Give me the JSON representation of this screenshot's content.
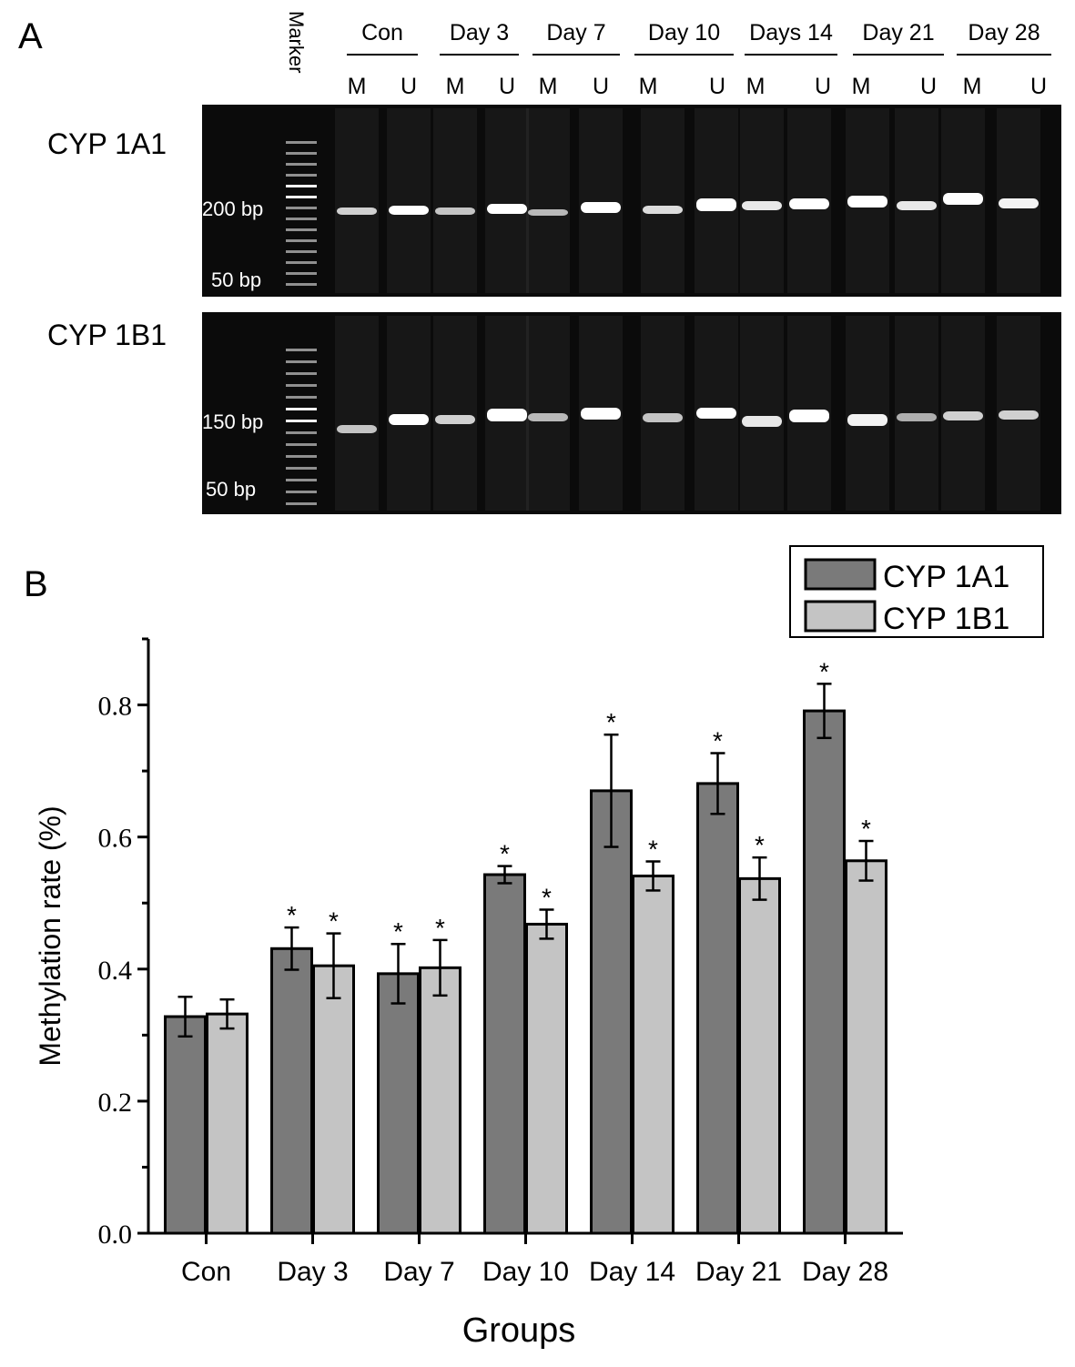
{
  "panel_a": {
    "letter": "A",
    "marker_label": "Marker",
    "groups": [
      "Con",
      "Day 3",
      "Day 7",
      "Day 10",
      "Days 14",
      "Day 21",
      "Day 28"
    ],
    "lane_labels": [
      "M",
      "U",
      "M",
      "U",
      "M",
      "U",
      "M",
      "U",
      "M",
      "U",
      "M",
      "U",
      "M",
      "U"
    ],
    "gels": [
      {
        "title": "CYP 1A1",
        "size_labels": [
          "200 bp",
          "50 bp"
        ]
      },
      {
        "title": "CYP 1B1",
        "size_labels": [
          "150 bp",
          "50 bp"
        ]
      }
    ]
  },
  "panel_b": {
    "letter": "B"
  },
  "colors": {
    "cyp1a1": "#7a7a7a",
    "cyp1b1": "#c4c4c4",
    "gel_bg": "#0b0b0b",
    "band": "#ffffff"
  },
  "chart_data": {
    "type": "bar",
    "xlabel": "Groups",
    "ylabel": "Methylation rate (%)",
    "ylim": [
      0,
      0.9
    ],
    "yticks": [
      "0.0",
      "0.2",
      "0.4",
      "0.6",
      "0.8"
    ],
    "categories": [
      "Con",
      "Day 3",
      "Day 7",
      "Day 10",
      "Day 14",
      "Day 21",
      "Day 28"
    ],
    "series": [
      {
        "name": "CYP 1A1",
        "values": [
          0.328,
          0.431,
          0.393,
          0.543,
          0.67,
          0.681,
          0.791
        ],
        "errors": [
          0.03,
          0.032,
          0.045,
          0.013,
          0.085,
          0.046,
          0.041
        ],
        "significant": [
          false,
          true,
          true,
          true,
          true,
          true,
          true
        ]
      },
      {
        "name": "CYP 1B1",
        "values": [
          0.332,
          0.405,
          0.402,
          0.468,
          0.541,
          0.537,
          0.564
        ],
        "errors": [
          0.022,
          0.049,
          0.042,
          0.022,
          0.022,
          0.032,
          0.03
        ],
        "significant": [
          false,
          true,
          true,
          true,
          true,
          true,
          true
        ]
      }
    ],
    "significance_marker": "*",
    "legend_position": "top-right"
  }
}
